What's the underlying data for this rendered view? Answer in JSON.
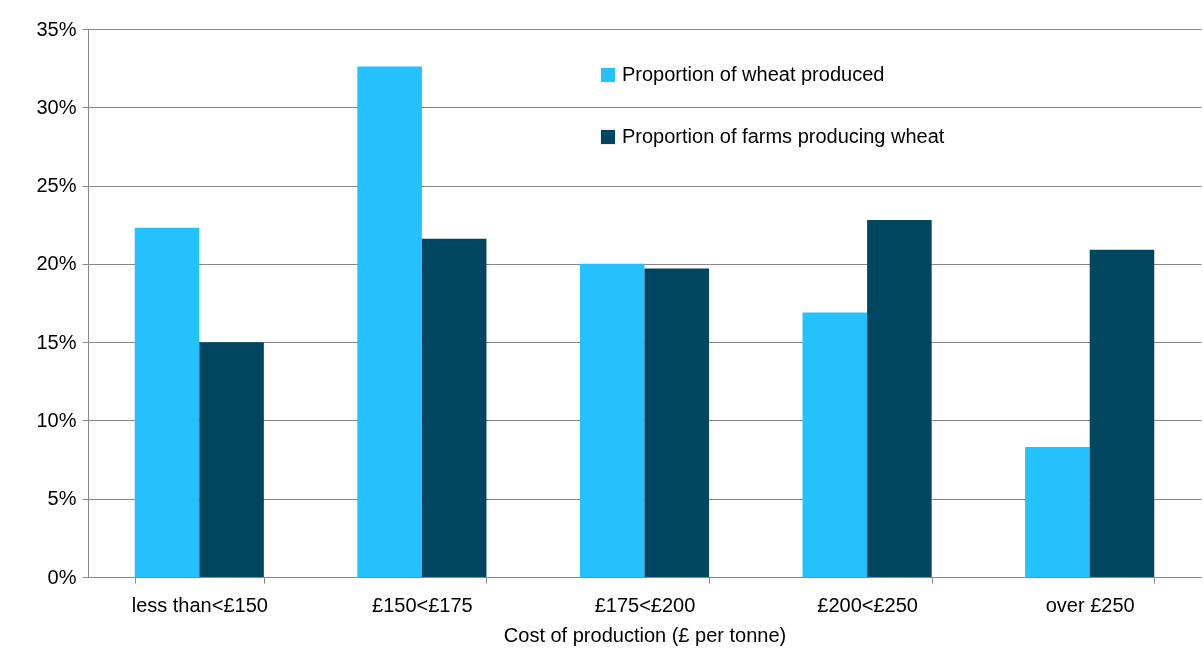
{
  "chart_data": {
    "type": "bar",
    "xlabel": "Cost of production (£ per tonne)",
    "categories": [
      "less than<£150",
      "£150<£175",
      "£175<£200",
      "£200<£250",
      "over £250"
    ],
    "series": [
      {
        "name": "Proportion of wheat produced",
        "color": "#25c0fe",
        "values": [
          22.3,
          32.6,
          20.0,
          16.9,
          8.3
        ]
      },
      {
        "name": "Proportion of farms producing wheat",
        "color": "#004660",
        "values": [
          15.0,
          21.6,
          19.7,
          22.8,
          20.9
        ]
      }
    ],
    "ylim": [
      0,
      35
    ],
    "yticks": [
      {
        "value": 0,
        "label": "0%"
      },
      {
        "value": 5,
        "label": "5%"
      },
      {
        "value": 10,
        "label": "10%"
      },
      {
        "value": 15,
        "label": "15%"
      },
      {
        "value": 20,
        "label": "20%"
      },
      {
        "value": 25,
        "label": "25%"
      },
      {
        "value": 30,
        "label": "30%"
      },
      {
        "value": 35,
        "label": "35%"
      }
    ],
    "grid": "y",
    "legend": "top right"
  }
}
